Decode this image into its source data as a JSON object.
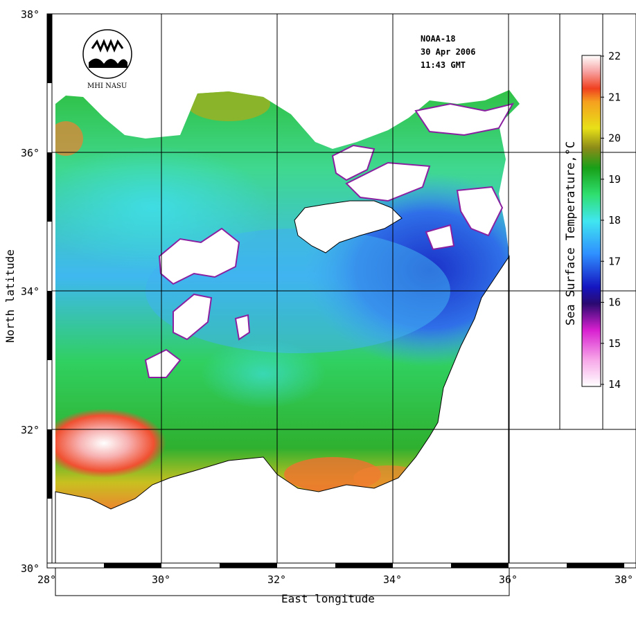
{
  "info": {
    "satellite": "NOAA-18",
    "date": "30 Apr 2006",
    "time": "11:43 GMT",
    "logo_text": "MHI NASU"
  },
  "axes": {
    "x_title": "East longitude",
    "y_title": "North latitude",
    "x_ticks": [
      "28°",
      "30°",
      "32°",
      "34°",
      "36°",
      "38°"
    ],
    "y_ticks": [
      "38°",
      "36°",
      "34°",
      "32°",
      "30°"
    ]
  },
  "colorbar": {
    "title": "Sea Surface Temperature,°C",
    "ticks": [
      "22",
      "21",
      "20",
      "19",
      "18",
      "17",
      "16",
      "15",
      "14"
    ],
    "range": [
      14,
      22
    ]
  },
  "colors": {
    "sea_cold": "#2f3fd8",
    "sea_cool": "#3fbfe8",
    "sea_mid": "#2fcf4f",
    "sea_warm": "#e8c81f",
    "sea_hot": "#ef6f2f",
    "cloud": "#ffffff",
    "land": "#ffffff"
  }
}
